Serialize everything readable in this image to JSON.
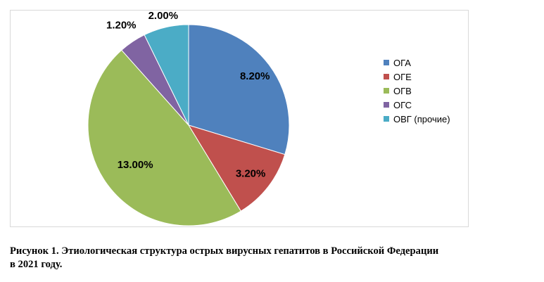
{
  "chart_data": {
    "type": "pie",
    "categories": [
      "ОГА",
      "ОГЕ",
      "ОГВ",
      "ОГС",
      "ОВГ (прочие)"
    ],
    "values": [
      8.2,
      3.2,
      13.0,
      1.2,
      2.0
    ],
    "data_labels": [
      "8.20%",
      "3.20%",
      "13.00%",
      "1.20%",
      "2.00%"
    ],
    "colors": [
      "#4f81bd",
      "#c0504d",
      "#9bbb59",
      "#8064a2",
      "#4bacc6"
    ],
    "legend_position": "right",
    "start_angle": "12 o'clock",
    "direction": "clockwise"
  },
  "caption": {
    "line1": "Рисунок 1. Этиологическая структура острых вирусных гепатитов в Российской Федерации",
    "line2": "в 2021 году."
  }
}
